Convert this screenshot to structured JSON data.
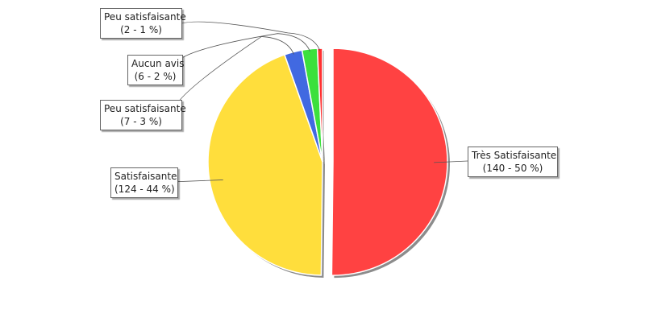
{
  "chart_data": {
    "type": "pie",
    "slices": [
      {
        "label": "Très Satisfaisante",
        "value": 140,
        "percent": "50 %",
        "color": "#FF4242"
      },
      {
        "label": "Satisfaisante",
        "value": 124,
        "percent": "44 %",
        "color": "#FFDE3C"
      },
      {
        "label": "Peu satisfaisante",
        "value": 7,
        "percent": "3 %",
        "color": "#4169E1"
      },
      {
        "label": "Aucun avis",
        "value": 6,
        "percent": "2 %",
        "color": "#3CE03C"
      },
      {
        "label": "Peu satisfaisante",
        "value": 2,
        "percent": "1 %",
        "color": "#FF3030"
      }
    ],
    "exploded_slice": 0,
    "legend": "callout-labels"
  },
  "labels": [
    {
      "name": "Très Satisfaisante",
      "detail": "(140 - 50 %)"
    },
    {
      "name": "Satisfaisante",
      "detail": "(124 - 44 %)"
    },
    {
      "name": "Peu satisfaisante",
      "detail": "(7 - 3 %)"
    },
    {
      "name": "Aucun avis",
      "detail": "(6 - 2 %)"
    },
    {
      "name": "Peu satisfaisante",
      "detail": "(2 - 1 %)"
    }
  ]
}
